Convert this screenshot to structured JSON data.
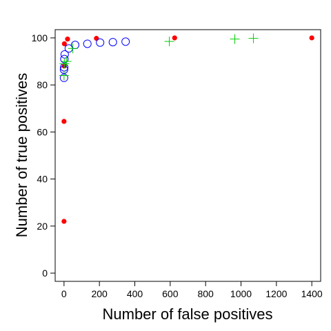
{
  "chart_data": {
    "type": "scatter",
    "title": "",
    "xlabel": "Number of false positives",
    "ylabel": "Number of true positives",
    "xlim": [
      -50,
      1450
    ],
    "ylim": [
      -3.5,
      103.5
    ],
    "x_ticks": [
      0,
      200,
      400,
      600,
      800,
      1000,
      1200,
      1400
    ],
    "y_ticks": [
      0,
      20,
      40,
      60,
      80,
      100
    ],
    "grid": false,
    "series": [
      {
        "marker": "filled-circle",
        "color": "#ff0000",
        "points": [
          {
            "x": 0,
            "y": 22
          },
          {
            "x": 0,
            "y": 64.5
          },
          {
            "x": 1,
            "y": 88
          },
          {
            "x": 2,
            "y": 97.5
          },
          {
            "x": 20,
            "y": 99.5
          },
          {
            "x": 183,
            "y": 99.8
          },
          {
            "x": 625,
            "y": 100
          },
          {
            "x": 1400,
            "y": 100
          }
        ]
      },
      {
        "marker": "open-circle",
        "color": "#0000ff",
        "points": [
          {
            "x": 0,
            "y": 83
          },
          {
            "x": 0,
            "y": 86.5
          },
          {
            "x": 1,
            "y": 87.5
          },
          {
            "x": 2,
            "y": 91
          },
          {
            "x": 4,
            "y": 93
          },
          {
            "x": 27,
            "y": 95.5
          },
          {
            "x": 63,
            "y": 97
          },
          {
            "x": 132,
            "y": 97.5
          },
          {
            "x": 204,
            "y": 98
          },
          {
            "x": 276,
            "y": 98.2
          },
          {
            "x": 348,
            "y": 98.4
          }
        ]
      },
      {
        "marker": "plus",
        "color": "#00cc00",
        "points": [
          {
            "x": 0,
            "y": 84
          },
          {
            "x": 2,
            "y": 89
          },
          {
            "x": 15,
            "y": 90
          },
          {
            "x": 50,
            "y": 95.5
          },
          {
            "x": 595,
            "y": 98.5
          },
          {
            "x": 965,
            "y": 99.5
          },
          {
            "x": 1070,
            "y": 99.8
          }
        ]
      }
    ]
  }
}
